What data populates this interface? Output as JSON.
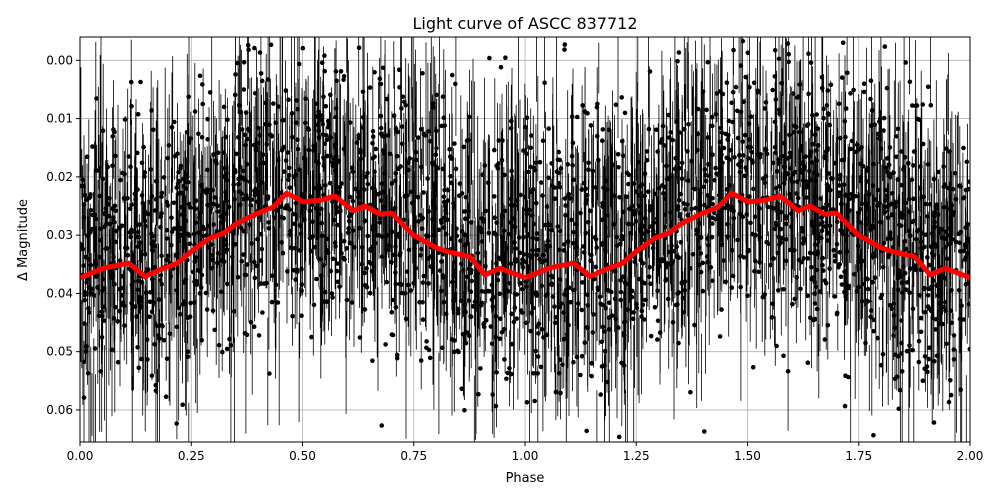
{
  "chart_data": {
    "type": "scatter",
    "title": "Light curve of ASCC 837712",
    "xlabel": "Phase",
    "ylabel": "Δ Magnitude",
    "xlim": [
      0.0,
      2.0
    ],
    "ylim": [
      0.0655,
      -0.004
    ],
    "y_inverted": true,
    "grid": true,
    "xticks": [
      "0.00",
      "0.25",
      "0.50",
      "0.75",
      "1.00",
      "1.25",
      "1.50",
      "1.75",
      "2.00"
    ],
    "yticks": [
      "0.00",
      "0.01",
      "0.02",
      "0.03",
      "0.04",
      "0.05",
      "0.06"
    ],
    "scatter_series": {
      "color": "#000000",
      "marker": "circle",
      "error_bars": true,
      "spread_sd": 0.012
    },
    "binned_curve": {
      "color": "#ff0000",
      "period_repeats": 2,
      "phase": [
        0.0,
        0.056,
        0.109,
        0.146,
        0.187,
        0.217,
        0.255,
        0.292,
        0.322,
        0.352,
        0.397,
        0.434,
        0.464,
        0.502,
        0.539,
        0.573,
        0.614,
        0.64,
        0.674,
        0.7,
        0.749,
        0.801,
        0.824,
        0.876,
        0.91,
        0.944,
        1.0
      ],
      "magnitude": [
        0.0373,
        0.0356,
        0.0348,
        0.0371,
        0.0357,
        0.0349,
        0.0325,
        0.0305,
        0.0297,
        0.028,
        0.0263,
        0.0252,
        0.0228,
        0.0243,
        0.024,
        0.0233,
        0.0258,
        0.025,
        0.0264,
        0.0262,
        0.03,
        0.0322,
        0.0328,
        0.0337,
        0.0368,
        0.0357,
        0.0373
      ]
    }
  }
}
